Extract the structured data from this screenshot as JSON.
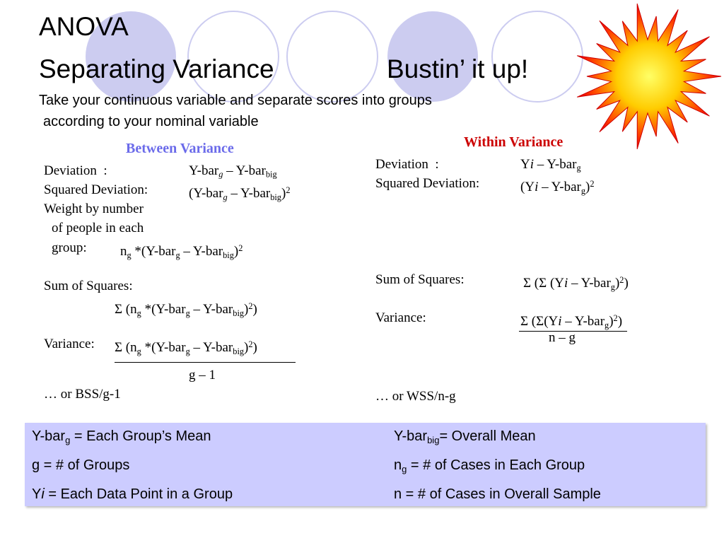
{
  "title": {
    "line1": "ANOVA",
    "line2": "Separating Variance",
    "line2b": "Bustin’ it up!"
  },
  "subtitle": {
    "line1": "Take your continuous variable and separate scores into groups",
    "line2": "according to your nominal variable"
  },
  "between": {
    "heading": "Between Variance",
    "items": [
      "Deviation  :",
      [
        "Y-bar",
        {
          "t": "g",
          "s": "isub"
        },
        " – Y-bar",
        {
          "t": "big",
          "s": "sub"
        }
      ],
      "Squared Deviation:",
      [
        "(Y-bar",
        {
          "t": "g",
          "s": "isub"
        },
        " – Y-bar",
        {
          "t": "big",
          "s": "sub"
        },
        ")",
        {
          "t": "2",
          "s": "sup"
        }
      ],
      "Weight by number",
      "of people in each",
      "group:",
      [
        "n",
        {
          "t": "g",
          "s": "sub"
        },
        " *(Y-bar",
        {
          "t": "g",
          "s": "sub"
        },
        " – Y-bar",
        {
          "t": "big",
          "s": "sub"
        },
        ")",
        {
          "t": "2",
          "s": "sup"
        }
      ],
      "Sum of Squares:",
      [
        "Σ (n",
        {
          "t": "g",
          "s": "sub"
        },
        " *(Y-bar",
        {
          "t": "g",
          "s": "sub"
        },
        " – Y-bar",
        {
          "t": "big",
          "s": "sub"
        },
        ")",
        {
          "t": "2",
          "s": "sup"
        },
        ")"
      ],
      "Variance:",
      [
        "Σ (n",
        {
          "t": "g",
          "s": "sub"
        },
        " *(Y-bar",
        {
          "t": "g",
          "s": "sub"
        },
        " – Y-bar",
        {
          "t": "big",
          "s": "sub"
        },
        ")",
        {
          "t": "2",
          "s": "sup"
        },
        ")"
      ],
      "g – 1",
      "… or BSS/g-1"
    ]
  },
  "within": {
    "heading": "Within Variance",
    "items": [
      "Deviation  :",
      [
        "Y",
        {
          "t": "i",
          "s": "i"
        },
        " – Y-bar",
        {
          "t": "g",
          "s": "sub"
        }
      ],
      "Squared Deviation:",
      [
        "(Y",
        {
          "t": "i",
          "s": "i"
        },
        " – Y-bar",
        {
          "t": "g",
          "s": "sub"
        },
        ")",
        {
          "t": "2",
          "s": "sup"
        }
      ],
      "Sum of Squares:",
      [
        "Σ (Σ (Y",
        {
          "t": "i",
          "s": "i"
        },
        " – Y-bar",
        {
          "t": "g",
          "s": "sub"
        },
        ")",
        {
          "t": "2",
          "s": "sup"
        },
        ")"
      ],
      "Variance:",
      [
        "Σ (Σ(Y",
        {
          "t": "i",
          "s": "i"
        },
        " – Y-bar",
        {
          "t": "g",
          "s": "sub"
        },
        ")",
        {
          "t": "2",
          "s": "sup"
        },
        ")"
      ],
      "n – g",
      "… or WSS/n-g"
    ]
  },
  "legend": [
    [
      "Y-bar",
      {
        "t": "g",
        "s": "sub"
      },
      " = Each Group’s Mean"
    ],
    [
      "Y-bar",
      {
        "t": "big",
        "s": "sub"
      },
      "= Overall Mean"
    ],
    "g = # of Groups",
    [
      "n",
      {
        "t": "g",
        "s": "sub"
      },
      " = # of Cases in Each Group"
    ],
    [
      "Y",
      {
        "t": "i",
        "s": "i"
      },
      " = Each Data Point in a Group"
    ],
    "n = # of Cases in Overall Sample"
  ]
}
